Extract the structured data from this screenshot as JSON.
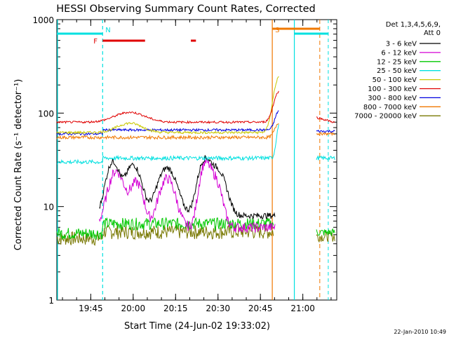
{
  "chart_data": {
    "type": "line",
    "title": "HESSI Observing Summary Count Rates, Corrected",
    "xlabel": "Start Time (24-Jun-02 19:33:02)",
    "ylabel": "Corrected Count Rate (s⁻¹ detector⁻¹)",
    "footer": "22-Jan-2010 10:49",
    "y_scale": "log",
    "ylim": [
      1,
      1000
    ],
    "xlim_minutes": [
      19.55,
      21.2
    ],
    "x_ticks": [
      {
        "t": 19.75,
        "label": "19:45"
      },
      {
        "t": 20.0,
        "label": "20:00"
      },
      {
        "t": 20.25,
        "label": "20:15"
      },
      {
        "t": 20.5,
        "label": "20:30"
      },
      {
        "t": 20.75,
        "label": "20:45"
      },
      {
        "t": 21.0,
        "label": "21:00"
      }
    ],
    "y_ticks": [
      {
        "v": 1,
        "label": "1"
      },
      {
        "v": 10,
        "label": "10"
      },
      {
        "v": 100,
        "label": "100"
      },
      {
        "v": 1000,
        "label": "1000"
      }
    ],
    "legend": {
      "header": [
        "Det 1,3,4,5,6,9,",
        "Att 0"
      ],
      "placement": "right"
    },
    "series": [
      {
        "name": "3 - 6 keV",
        "color": "#000000"
      },
      {
        "name": "6 - 12 keV",
        "color": "#d400d4"
      },
      {
        "name": "12 - 25 keV",
        "color": "#00c800"
      },
      {
        "name": "25 - 50 keV",
        "color": "#00e0e0"
      },
      {
        "name": "50 - 100 keV",
        "color": "#c8c800"
      },
      {
        "name": "100 - 300 keV",
        "color": "#e00000"
      },
      {
        "name": "300 - 800 keV",
        "color": "#0000e0"
      },
      {
        "name": "800 - 7000 keV",
        "color": "#f07800"
      },
      {
        "name": "7000 - 20000 keV",
        "color": "#787800"
      }
    ],
    "markers": [
      {
        "label": "N",
        "t": 19.82,
        "color": "#00e0e0",
        "style": "dashed"
      },
      {
        "label": "S",
        "t": 20.82,
        "color": "#f07800",
        "style": "solid"
      }
    ],
    "flag_labels": [
      {
        "label": "F",
        "color": "#e00000"
      }
    ]
  }
}
